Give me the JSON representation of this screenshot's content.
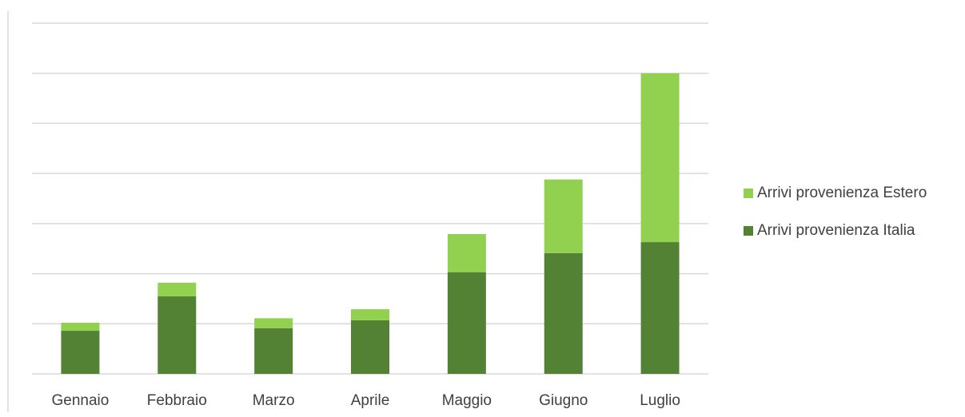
{
  "chart_data": {
    "type": "bar",
    "stacked": true,
    "categories": [
      "Gennaio",
      "Febbraio",
      "Marzo",
      "Aprile",
      "Maggio",
      "Giugno",
      "Luglio"
    ],
    "series": [
      {
        "name": "Arrivi provenienza Italia",
        "color": "#548235",
        "values": [
          0.86,
          1.55,
          0.91,
          1.07,
          2.03,
          2.41,
          2.63
        ]
      },
      {
        "name": "Arrivi provenienza Estero",
        "color": "#92D050",
        "values": [
          0.16,
          0.27,
          0.2,
          0.22,
          0.76,
          1.47,
          3.37
        ]
      }
    ],
    "ylim": [
      0,
      7
    ],
    "gridlines": 7,
    "grid": true,
    "legend": "right",
    "title": "",
    "xlabel": "",
    "ylabel": ""
  }
}
